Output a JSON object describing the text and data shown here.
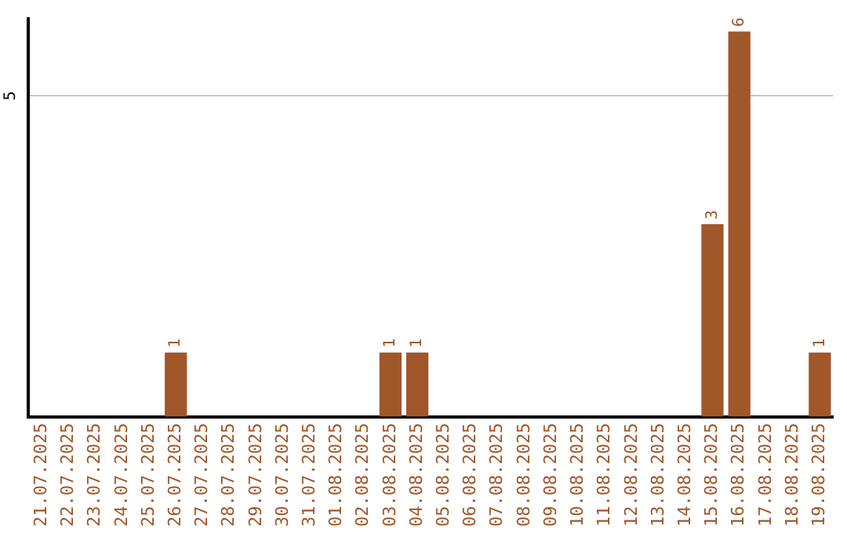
{
  "chart_data": {
    "type": "bar",
    "categories": [
      "21.07.2025",
      "22.07.2025",
      "23.07.2025",
      "24.07.2025",
      "25.07.2025",
      "26.07.2025",
      "27.07.2025",
      "28.07.2025",
      "29.07.2025",
      "30.07.2025",
      "31.07.2025",
      "01.08.2025",
      "02.08.2025",
      "03.08.2025",
      "04.08.2025",
      "05.08.2025",
      "06.08.2025",
      "07.08.2025",
      "08.08.2025",
      "09.08.2025",
      "10.08.2025",
      "11.08.2025",
      "12.08.2025",
      "13.08.2025",
      "14.08.2025",
      "15.08.2025",
      "16.08.2025",
      "17.08.2025",
      "18.08.2025",
      "19.08.2025"
    ],
    "values": [
      0,
      0,
      0,
      0,
      0,
      1,
      0,
      0,
      0,
      0,
      0,
      0,
      0,
      1,
      1,
      0,
      0,
      0,
      0,
      0,
      0,
      0,
      0,
      0,
      0,
      3,
      6,
      0,
      0,
      1
    ],
    "value_labels": [
      null,
      null,
      null,
      null,
      null,
      "1",
      null,
      null,
      null,
      null,
      null,
      null,
      null,
      "1",
      "1",
      null,
      null,
      null,
      null,
      null,
      null,
      null,
      null,
      null,
      null,
      "3",
      "6",
      null,
      null,
      "1"
    ],
    "color": "#a0572a",
    "ylim": [
      0,
      6.2
    ],
    "yticks": [
      5
    ],
    "grid": "y",
    "legend": false
  }
}
